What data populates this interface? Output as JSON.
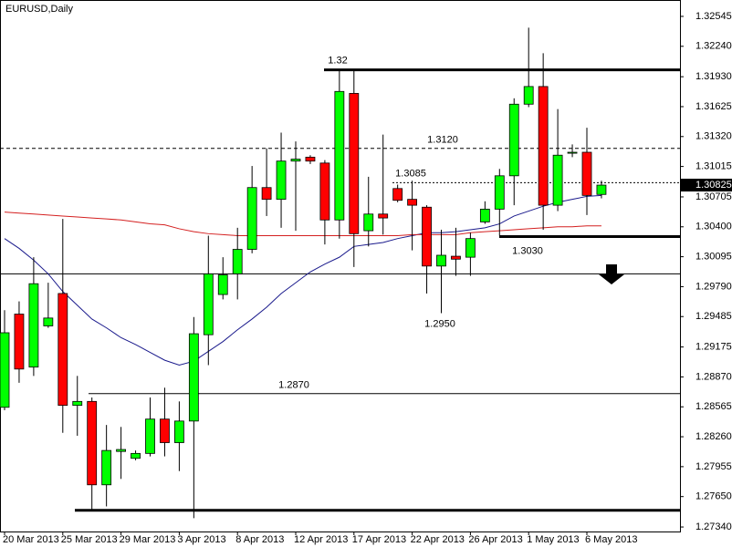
{
  "chart_data": {
    "type": "candlestick",
    "title": "EURUSD,Daily",
    "categories": [
      "20 Mar 2013",
      null,
      null,
      null,
      "25 Mar 2013",
      null,
      null,
      null,
      "29 Mar 2013",
      null,
      null,
      null,
      "3 Apr 2013",
      null,
      null,
      null,
      "8 Apr 2013",
      null,
      null,
      null,
      "12 Apr 2013",
      null,
      null,
      null,
      "17 Apr 2013",
      null,
      null,
      null,
      "22 Apr 2013",
      null,
      null,
      null,
      "26 Apr 2013",
      null,
      null,
      null,
      "1 May 2013",
      null,
      null,
      null,
      "6 May 2013",
      null
    ],
    "open": [
      1.2856,
      1.2951,
      1.2897,
      1.2939,
      1.2972,
      1.2858,
      1.2862,
      1.2777,
      1.2811,
      1.2804,
      1.2809,
      1.2844,
      1.282,
      1.2842,
      1.293,
      1.2971,
      1.2992,
      1.3017,
      1.308,
      1.3068,
      1.3107,
      1.3111,
      1.3105,
      1.3047,
      1.3176,
      1.3036,
      1.3053,
      1.3079,
      1.3068,
      1.306,
      1.3,
      1.301,
      1.3009,
      1.3045,
      1.3058,
      1.3092,
      1.3165,
      1.3183,
      1.3062,
      1.3115,
      1.3116,
      1.3073
    ],
    "high": [
      1.2955,
      1.2964,
      1.3009,
      1.2983,
      1.3048,
      1.2888,
      1.2866,
      1.2838,
      1.2836,
      1.2812,
      1.2866,
      1.2876,
      1.2862,
      1.2948,
      1.3031,
      1.3009,
      1.3039,
      1.3102,
      1.312,
      1.3136,
      1.3127,
      1.3113,
      1.3108,
      1.3199,
      1.3199,
      1.3091,
      1.3134,
      1.3083,
      1.3087,
      1.3062,
      1.3037,
      1.3039,
      1.3034,
      1.3066,
      1.3099,
      1.3171,
      1.3243,
      1.3217,
      1.316,
      1.3124,
      1.3141,
      1.3087
    ],
    "low": [
      1.2853,
      1.2881,
      1.2888,
      1.2937,
      1.283,
      1.2827,
      1.2751,
      1.2755,
      1.2783,
      1.2802,
      1.2806,
      1.2806,
      1.2791,
      1.2743,
      1.2899,
      1.2966,
      1.2966,
      1.3013,
      1.3051,
      1.3039,
      1.3036,
      1.3104,
      1.3022,
      1.3028,
      1.2999,
      1.302,
      1.3032,
      1.3065,
      1.3016,
      1.2972,
      1.2952,
      1.299,
      1.299,
      1.3043,
      1.3031,
      1.3062,
      1.3162,
      1.3037,
      1.3056,
      1.3111,
      1.3052,
      1.3069
    ],
    "close": [
      1.2932,
      1.2895,
      1.2982,
      1.2947,
      1.2858,
      1.2862,
      1.2777,
      1.2812,
      1.2813,
      1.2809,
      1.2844,
      1.282,
      1.2842,
      1.2931,
      1.2992,
      1.2991,
      1.3017,
      1.308,
      1.3068,
      1.3107,
      1.3109,
      1.3107,
      1.3047,
      1.3178,
      1.3033,
      1.3053,
      1.3049,
      1.3067,
      1.3062,
      1.3,
      1.3011,
      1.3007,
      1.3028,
      1.3058,
      1.3092,
      1.3165,
      1.3183,
      1.3062,
      1.3113,
      1.3116,
      1.3072,
      1.30825
    ],
    "up_color": "#00ff00",
    "down_color": "#ff0000",
    "moving_averages": [
      {
        "color": "#1a1a8c",
        "values": [
          1.3028,
          1.3018,
          1.3006,
          1.2992,
          1.2974,
          1.296,
          1.2946,
          1.2937,
          1.2927,
          1.292,
          1.2912,
          1.2904,
          1.2899,
          1.2903,
          1.2913,
          1.2923,
          1.2935,
          1.2946,
          1.2958,
          1.2972,
          1.2983,
          1.2994,
          1.3002,
          1.3009,
          1.302,
          1.3022,
          1.3024,
          1.3028,
          1.3031,
          1.3034,
          1.3034,
          1.3035,
          1.3037,
          1.3039,
          1.3043,
          1.3051,
          1.3056,
          1.3061,
          1.3065,
          1.3068,
          1.3071,
          1.3072
        ]
      },
      {
        "color": "#d42020",
        "values": [
          1.3055,
          1.3054,
          1.3053,
          1.3052,
          1.3051,
          1.305,
          1.3049,
          1.3048,
          1.3047,
          1.3045,
          1.3043,
          1.3042,
          1.3038,
          1.3035,
          1.3033,
          1.3032,
          1.3031,
          1.3031,
          1.3031,
          1.3031,
          1.3031,
          1.3031,
          1.3031,
          1.3031,
          1.3031,
          1.3031,
          1.3031,
          1.3031,
          1.3032,
          1.3032,
          1.3032,
          1.3032,
          1.3034,
          1.3035,
          1.3036,
          1.3037,
          1.3038,
          1.3039,
          1.304,
          1.304,
          1.3041,
          1.3041
        ]
      }
    ],
    "levels": [
      {
        "value": 1.32,
        "label": "1.32",
        "style": "thick"
      },
      {
        "value": 1.312,
        "label": "1.3120",
        "style": "dashed"
      },
      {
        "value": 1.3085,
        "label": "1.3085",
        "style": "dotted"
      },
      {
        "value": 1.303,
        "label": "1.3030",
        "style": "thick"
      },
      {
        "value": 1.287,
        "label": "1.2870",
        "style": "thin"
      },
      {
        "value": 1.2992,
        "style": "thin"
      },
      {
        "value": 1.2751,
        "style": "thick"
      }
    ],
    "annotations": [
      {
        "text": "1.2950",
        "value": 1.295
      }
    ],
    "ylim": [
      1.27294,
      1.32712
    ],
    "yticks": [
      1.32545,
      {
        "value": 1.3224,
        "label": "1.32240"
      },
      {
        "value": 1.3193,
        "label": "1.31930"
      },
      1.31625,
      {
        "value": 1.3132,
        "label": "1.31320"
      },
      1.31015,
      1.30705,
      {
        "value": 1.304,
        "label": "1.30400"
      },
      1.30095,
      {
        "value": 1.2979,
        "label": "1.29790"
      },
      1.29485,
      1.29175,
      {
        "value": 1.2887,
        "label": "1.28870"
      },
      1.28565,
      {
        "value": 1.2826,
        "label": "1.28260"
      },
      1.27955,
      {
        "value": 1.2765,
        "label": "1.27650"
      },
      {
        "value": 1.2734,
        "label": "1.27340"
      }
    ]
  }
}
